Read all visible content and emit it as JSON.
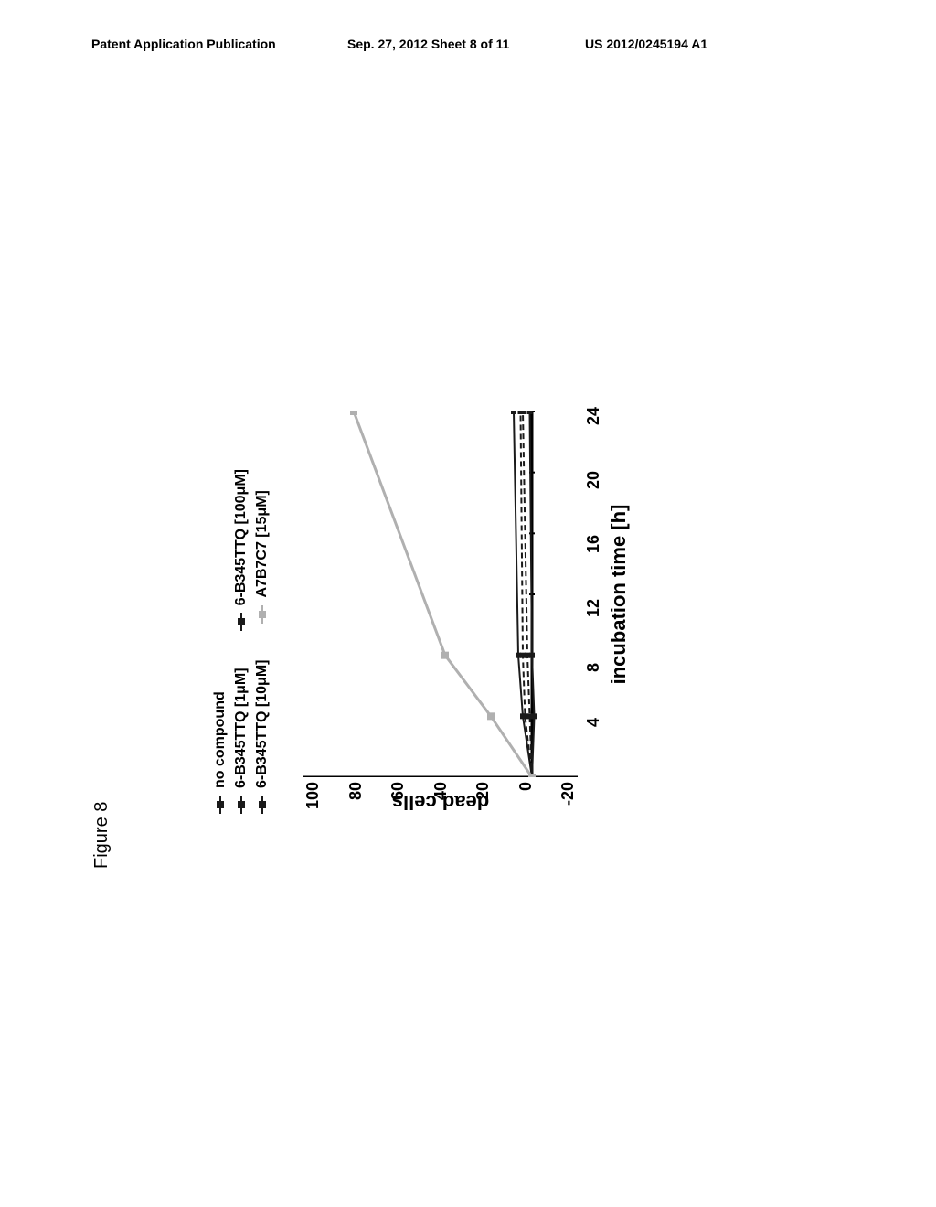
{
  "header": {
    "left": "Patent Application Publication",
    "center": "Sep. 27, 2012  Sheet 8 of 11",
    "right": "US 2012/0245194 A1"
  },
  "figure_label": "Figure 8",
  "chart": {
    "type": "line",
    "x_label": "incubation time [h]",
    "y_label": "dead cells",
    "ylim": [
      -20,
      100
    ],
    "xlim": [
      0,
      24
    ],
    "y_ticks": [
      100,
      80,
      60,
      40,
      20,
      0,
      -20
    ],
    "x_ticks": [
      4,
      8,
      12,
      16,
      20,
      24
    ],
    "title_fontsize": 22,
    "tick_fontsize": 18,
    "legend_fontsize": 16,
    "background_color": "#ffffff",
    "axis_color": "#000000",
    "legend": {
      "items": [
        {
          "label": "no compound",
          "marker": "square",
          "line_style": "solid",
          "color": "#1a1a1a"
        },
        {
          "label": "6-B345TTQ [1μM]",
          "marker": "square",
          "line_style": "dashed",
          "color": "#1a1a1a"
        },
        {
          "label": "6-B345TTQ [100μM]",
          "marker": "square",
          "line_style": "solid",
          "color": "#1a1a1a"
        },
        {
          "label": "6-B345TTQ [10μM]",
          "marker": "square",
          "line_style": "dashed",
          "color": "#1a1a1a"
        },
        {
          "label": "A7B7C7 [15μM]",
          "marker": "square",
          "line_style": "solid",
          "color": "#b0b0b0"
        }
      ]
    },
    "series": [
      {
        "name": "no compound",
        "color": "#1a1a1a",
        "line_style": "solid",
        "line_width": 2,
        "marker": "square",
        "marker_size": 6,
        "x": [
          0,
          4,
          8,
          24
        ],
        "y": [
          0,
          -1,
          0,
          1
        ]
      },
      {
        "name": "6-B345TTQ_1uM",
        "color": "#1a1a1a",
        "line_style": "dashed",
        "line_width": 2,
        "marker": "square",
        "marker_size": 6,
        "x": [
          0,
          4,
          8,
          24
        ],
        "y": [
          0,
          1,
          2,
          4
        ]
      },
      {
        "name": "6-B345TTQ_10uM",
        "color": "#1a1a1a",
        "line_style": "dashed",
        "line_width": 2,
        "marker": "square",
        "marker_size": 6,
        "x": [
          0,
          4,
          8,
          24
        ],
        "y": [
          0,
          3,
          4,
          5
        ]
      },
      {
        "name": "6-B345TTQ_100uM",
        "color": "#1a1a1a",
        "line_style": "solid",
        "line_width": 2,
        "marker": "square",
        "marker_size": 6,
        "x": [
          0,
          4,
          8,
          24
        ],
        "y": [
          0,
          4,
          6,
          8
        ]
      },
      {
        "name": "A7B7C7_15uM",
        "color": "#b0b0b0",
        "line_style": "solid",
        "line_width": 3,
        "marker": "square",
        "marker_size": 8,
        "x": [
          0,
          4,
          8,
          24
        ],
        "y": [
          0,
          18,
          38,
          78
        ]
      }
    ]
  }
}
